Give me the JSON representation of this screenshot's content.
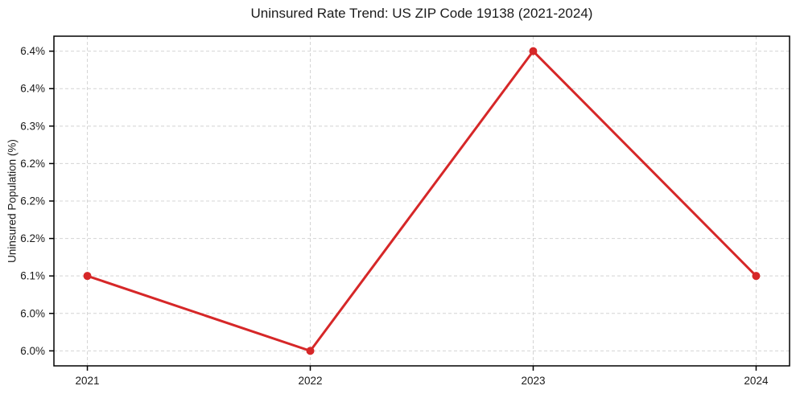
{
  "chart_data": {
    "type": "line",
    "title": "Uninsured Rate Trend: US ZIP Code 19138 (2021-2024)",
    "xlabel": "",
    "ylabel": "Uninsured Population (%)",
    "x": [
      2021,
      2022,
      2023,
      2024
    ],
    "values": [
      6.1,
      6.0,
      6.4,
      6.1
    ],
    "xlim": [
      2020.85,
      2024.15
    ],
    "ylim": [
      5.98,
      6.42
    ],
    "xticks": [
      {
        "value": 2021,
        "label": "2021"
      },
      {
        "value": 2022,
        "label": "2022"
      },
      {
        "value": 2023,
        "label": "2023"
      },
      {
        "value": 2024,
        "label": "2024"
      }
    ],
    "yticks": [
      {
        "value": 6.0,
        "label": "6.0%"
      },
      {
        "value": 6.05,
        "label": "6.0%"
      },
      {
        "value": 6.1,
        "label": "6.1%"
      },
      {
        "value": 6.15,
        "label": "6.2%"
      },
      {
        "value": 6.2,
        "label": "6.2%"
      },
      {
        "value": 6.25,
        "label": "6.2%"
      },
      {
        "value": 6.3,
        "label": "6.3%"
      },
      {
        "value": 6.35,
        "label": "6.4%"
      },
      {
        "value": 6.4,
        "label": "6.4%"
      }
    ],
    "grid": true,
    "legend": false,
    "marker": "circle",
    "line_color": "#d62728",
    "grid_color": "#d4d4d4",
    "spine_color": "#000000",
    "text_color": "#1a1a1a",
    "background": "#ffffff"
  }
}
